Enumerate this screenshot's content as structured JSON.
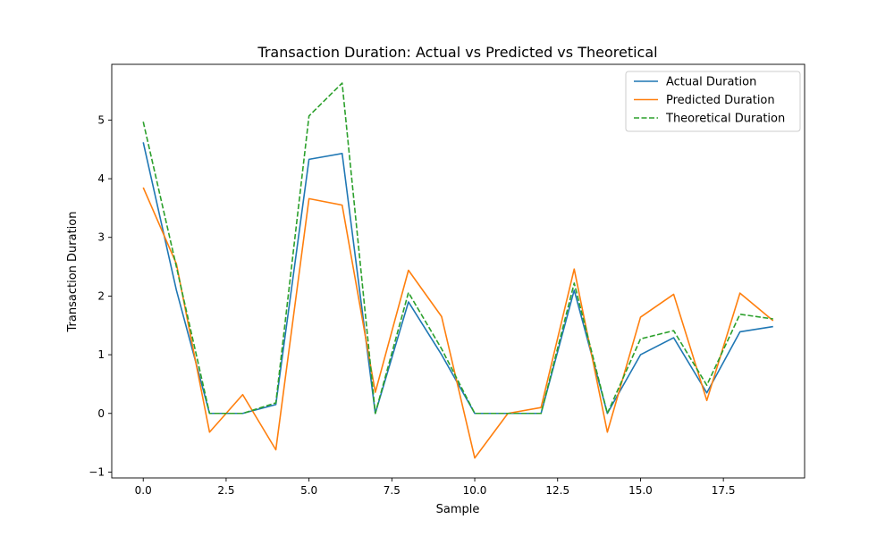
{
  "chart_data": {
    "type": "line",
    "title": "Transaction Duration: Actual vs Predicted vs Theoretical",
    "xlabel": "Sample",
    "ylabel": "Transaction Duration",
    "xlim": [
      -0.95,
      19.95
    ],
    "ylim": [
      -1.1,
      5.95
    ],
    "x_ticks": [
      0,
      2.5,
      5,
      7.5,
      10,
      12.5,
      15,
      17.5
    ],
    "x_tick_labels": [
      "0.0",
      "2.5",
      "5.0",
      "7.5",
      "10.0",
      "12.5",
      "15.0",
      "17.5"
    ],
    "y_ticks": [
      -1,
      0,
      1,
      2,
      3,
      4,
      5
    ],
    "y_tick_labels": [
      "−1",
      "0",
      "1",
      "2",
      "3",
      "4",
      "5"
    ],
    "grid": false,
    "legend_position": "top-right",
    "x": [
      0,
      1,
      2,
      3,
      4,
      5,
      6,
      7,
      8,
      9,
      10,
      11,
      12,
      13,
      14,
      15,
      16,
      17,
      18,
      19
    ],
    "series": [
      {
        "name": "Actual Duration",
        "color": "#1f77b4",
        "dash": "solid",
        "values": [
          4.62,
          2.1,
          0.0,
          0.0,
          0.15,
          4.33,
          4.43,
          0.0,
          1.9,
          1.0,
          0.0,
          0.0,
          0.0,
          2.1,
          0.0,
          1.0,
          1.29,
          0.35,
          1.39,
          1.48
        ]
      },
      {
        "name": "Predicted Duration",
        "color": "#ff7f0e",
        "dash": "solid",
        "values": [
          3.85,
          2.55,
          -0.32,
          0.32,
          -0.62,
          3.66,
          3.55,
          0.36,
          2.44,
          1.65,
          -0.76,
          0.0,
          0.1,
          2.46,
          -0.32,
          1.64,
          2.03,
          0.22,
          2.05,
          1.58
        ]
      },
      {
        "name": "Theoretical Duration",
        "color": "#2ca02c",
        "dash": "dashed",
        "values": [
          4.97,
          2.5,
          0.0,
          0.0,
          0.18,
          5.07,
          5.63,
          0.0,
          2.06,
          1.1,
          0.0,
          0.0,
          0.0,
          2.22,
          0.0,
          1.27,
          1.41,
          0.48,
          1.69,
          1.61
        ]
      }
    ]
  }
}
